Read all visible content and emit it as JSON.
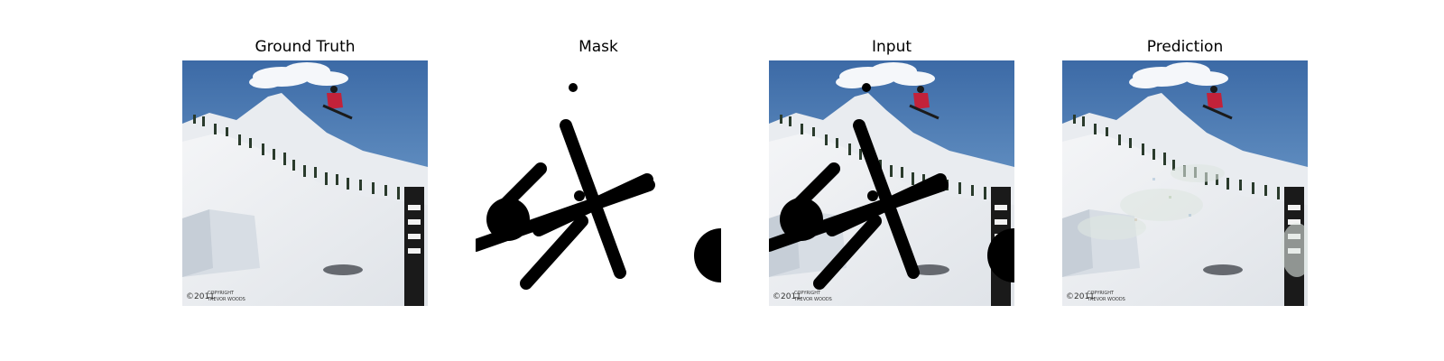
{
  "figure": {
    "panels": [
      {
        "title": "Ground Truth",
        "image": "ski-scene-original"
      },
      {
        "title": "Mask",
        "image": "brush-stroke-mask"
      },
      {
        "title": "Input",
        "image": "ski-scene-masked"
      },
      {
        "title": "Prediction",
        "image": "ski-scene-inpainted"
      }
    ],
    "watermark": {
      "year": "©2011",
      "line1": "COPYRIGHT",
      "line2": "TREVOR WOODS"
    }
  }
}
